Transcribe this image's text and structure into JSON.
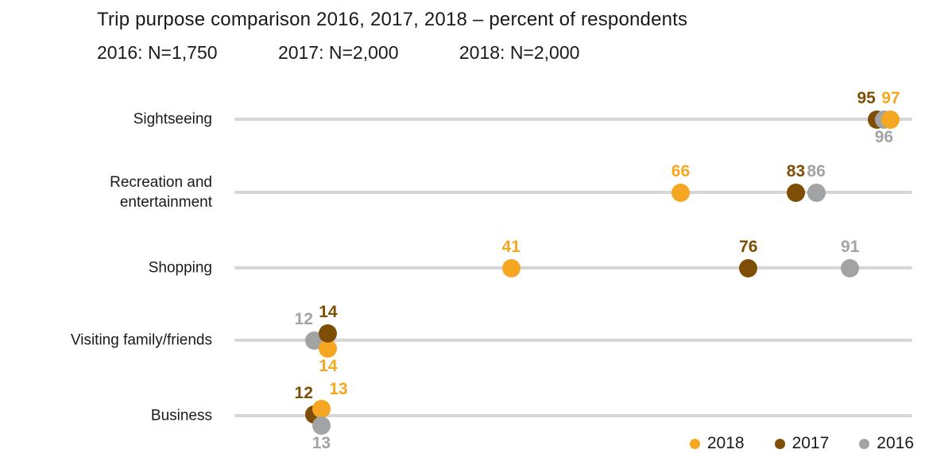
{
  "header": {
    "title": "Trip purpose comparison 2016, 2017, 2018 – percent of respondents",
    "sample_sizes": [
      "2016: N=1,750",
      "2017: N=2,000",
      "2018: N=2,000"
    ]
  },
  "colors": {
    "2018": "#F6A721",
    "2017": "#7E4E05",
    "2016": "#A2A3A5",
    "axis_line": "#D6D6D8",
    "text": "#1A1A1A"
  },
  "legend": [
    {
      "label": "2018",
      "color_key": "2018"
    },
    {
      "label": "2017",
      "color_key": "2017"
    },
    {
      "label": "2016",
      "color_key": "2016"
    }
  ],
  "chart_data": {
    "type": "scatter",
    "variant": "horizontal-dot-plot",
    "title": "Trip purpose comparison 2016, 2017, 2018 – percent of respondents",
    "subtitle": "2016: N=1,750   2017: N=2,000   2018: N=2,000",
    "xlabel": "percent of respondents",
    "xlim": [
      0,
      100
    ],
    "grid": false,
    "legend_position": "bottom-right",
    "categories": [
      "Sightseeing",
      "Recreation and entertainment",
      "Shopping",
      "Visiting family/friends",
      "Business"
    ],
    "series": [
      {
        "name": "2018",
        "values": [
          97,
          66,
          41,
          14,
          13
        ]
      },
      {
        "name": "2017",
        "values": [
          95,
          83,
          76,
          14,
          12
        ]
      },
      {
        "name": "2016",
        "values": [
          96,
          86,
          91,
          12,
          13
        ]
      }
    ],
    "rows": [
      {
        "label": "Sightseeing",
        "label_lines": [
          "Sightseeing"
        ],
        "points": [
          {
            "year": "2017",
            "value": 95,
            "dy": 0,
            "label_pos": "above-left"
          },
          {
            "year": "2016",
            "value": 96,
            "dy": 0,
            "label_pos": "below"
          },
          {
            "year": "2018",
            "value": 97,
            "dy": 0,
            "label_pos": "above"
          }
        ]
      },
      {
        "label": "Recreation and entertainment",
        "label_lines": [
          "Recreation and",
          "entertainment"
        ],
        "points": [
          {
            "year": "2018",
            "value": 66,
            "dy": 0,
            "label_pos": "above"
          },
          {
            "year": "2017",
            "value": 83,
            "dy": 0,
            "label_pos": "above"
          },
          {
            "year": "2016",
            "value": 86,
            "dy": 0,
            "label_pos": "above"
          }
        ]
      },
      {
        "label": "Shopping",
        "label_lines": [
          "Shopping"
        ],
        "points": [
          {
            "year": "2018",
            "value": 41,
            "dy": 0,
            "label_pos": "above"
          },
          {
            "year": "2017",
            "value": 76,
            "dy": 0,
            "label_pos": "above"
          },
          {
            "year": "2016",
            "value": 91,
            "dy": 0,
            "label_pos": "above"
          }
        ]
      },
      {
        "label": "Visiting family/friends",
        "label_lines": [
          "Visiting family/friends"
        ],
        "points": [
          {
            "year": "2016",
            "value": 12,
            "dy": 0,
            "label_pos": "above-left"
          },
          {
            "year": "2018",
            "value": 14,
            "dy": 10,
            "label_pos": "below"
          },
          {
            "year": "2017",
            "value": 14,
            "dy": -9,
            "label_pos": "above"
          }
        ]
      },
      {
        "label": "Business",
        "label_lines": [
          "Business"
        ],
        "points": [
          {
            "year": "2017",
            "value": 12,
            "dy": -2,
            "label_pos": "above-left"
          },
          {
            "year": "2018",
            "value": 13,
            "dy": -9,
            "label_pos": "above-right"
          },
          {
            "year": "2016",
            "value": 13,
            "dy": 12,
            "label_pos": "below"
          }
        ]
      }
    ]
  }
}
